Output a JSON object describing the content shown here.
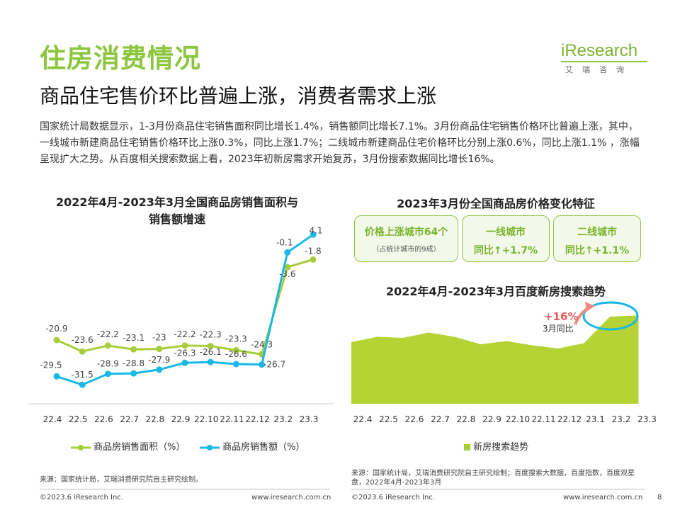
{
  "header": {
    "title": "住房消费情况",
    "subtitle": "商品住宅售价环比普遍上涨，消费者需求上涨",
    "body": "国家统计局数据显示，1-3月份商品住宅销售面积同比增长1.4%，销售额同比增长7.1%。3月份商品住宅销售价格环比普遍上涨，其中，一线城市新建商品住宅销售价格环比上涨0.3%，同比上涨1.7%；二线城市新建商品住宅价格环比分别上涨0.6%，同比上涨1.1% ，涨幅呈现扩大之势。从百度相关搜索数据上看，2023年初新房需求开始复苏，3月份搜索数据同比增长16%。"
  },
  "logo": {
    "word": "iResearch",
    "tagline": "艾瑞咨询"
  },
  "colors": {
    "green": "#a9cd3a",
    "lightgreen": "#b5d334",
    "cyan": "#1ab8e8",
    "accent": "#e85c5c"
  },
  "chart_data": [
    {
      "type": "line",
      "title_lines": [
        "2022年4月-2023年3月全国商品房销售面积与",
        "销售额增速"
      ],
      "categories": [
        "22.4",
        "22.5",
        "22.6",
        "22.7",
        "22.8",
        "22.9",
        "22.10",
        "22.11",
        "22.12",
        "23.2",
        "23.3"
      ],
      "series": [
        {
          "name": "商品房销售面积（%）",
          "values": [
            -20.9,
            -23.6,
            -22.2,
            -23.1,
            -23.0,
            -22.2,
            -22.3,
            -23.3,
            -24.3,
            -3.6,
            -1.8
          ]
        },
        {
          "name": "商品房销售额（%）",
          "values": [
            -29.5,
            -31.5,
            -28.9,
            -28.8,
            -27.9,
            -26.3,
            -26.1,
            -26.6,
            -26.7,
            -0.1,
            4.1
          ]
        }
      ],
      "ylim": [
        -36,
        6
      ]
    },
    {
      "type": "area",
      "title": "2022年4月-2023年3月百度新房搜索趋势",
      "categories": [
        "22.4",
        "22.5",
        "22.6",
        "22.7",
        "22.8",
        "22.9",
        "22.10",
        "22.11",
        "22.12",
        "23.1",
        "23.2",
        "23.3"
      ],
      "series": [
        {
          "name": "新房搜索趋势",
          "values": [
            58,
            63,
            62,
            67,
            63,
            56,
            59,
            55,
            52,
            57,
            82,
            83
          ]
        }
      ],
      "ylim": [
        0,
        100
      ],
      "annotation": {
        "value": "+16%",
        "label": "3月同比"
      }
    }
  ],
  "price_panel": {
    "title": "2023年3月份全国商品房价格变化特征",
    "boxes": [
      {
        "line1": "价格上涨城市64个",
        "line2": "（占统计城市的9成）"
      },
      {
        "line1": "一线城市",
        "line2": "同比↑+1.7%"
      },
      {
        "line1": "二线城市",
        "line2": "同比↑+1.1%"
      }
    ]
  },
  "sources": {
    "left": "来源：国家统计局，艾瑞消费研究院自主研究绘制。",
    "right": "来源：国家统计局，艾瑞消费研究院自主研究绘制；百度搜索大数据，百度指数，百度观星盘，2022年4月-2023年3月"
  },
  "footer": {
    "copyright_left": "©2023.6 iResearch Inc.",
    "url_left": "www.iresearch.com.cn",
    "copyright_right": "©2023.6 iResearch Inc.",
    "url_right": "www.iresearch.com.cn",
    "page_number": "8"
  }
}
